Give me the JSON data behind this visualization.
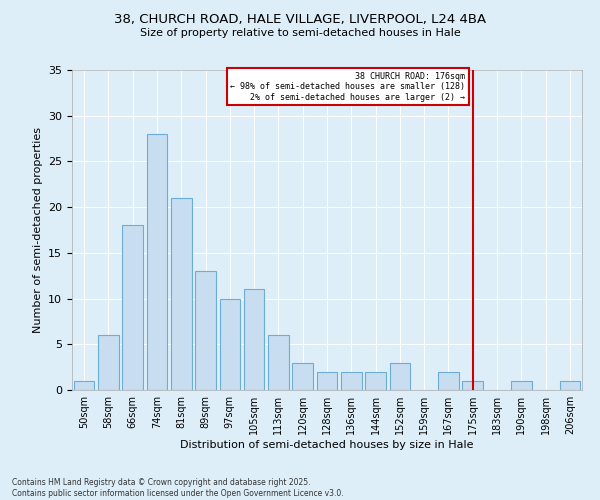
{
  "title": "38, CHURCH ROAD, HALE VILLAGE, LIVERPOOL, L24 4BA",
  "subtitle": "Size of property relative to semi-detached houses in Hale",
  "xlabel": "Distribution of semi-detached houses by size in Hale",
  "ylabel": "Number of semi-detached properties",
  "bar_labels": [
    "50sqm",
    "58sqm",
    "66sqm",
    "74sqm",
    "81sqm",
    "89sqm",
    "97sqm",
    "105sqm",
    "113sqm",
    "120sqm",
    "128sqm",
    "136sqm",
    "144sqm",
    "152sqm",
    "159sqm",
    "167sqm",
    "175sqm",
    "183sqm",
    "190sqm",
    "198sqm",
    "206sqm"
  ],
  "bar_values": [
    1,
    6,
    18,
    28,
    21,
    13,
    10,
    11,
    6,
    3,
    2,
    2,
    2,
    3,
    0,
    2,
    1,
    0,
    1,
    0,
    1
  ],
  "bar_color": "#c8ddf0",
  "bar_edge_color": "#6aaed6",
  "vline_x": 16,
  "vline_color": "#cc0000",
  "annotation_title": "38 CHURCH ROAD: 176sqm",
  "annotation_line1": "← 98% of semi-detached houses are smaller (128)",
  "annotation_line2": "2% of semi-detached houses are larger (2) →",
  "annotation_box_color": "#cc0000",
  "annotation_bg": "#ffffff",
  "footnote": "Contains HM Land Registry data © Crown copyright and database right 2025.\nContains public sector information licensed under the Open Government Licence v3.0.",
  "ylim": [
    0,
    35
  ],
  "yticks": [
    0,
    5,
    10,
    15,
    20,
    25,
    30,
    35
  ],
  "background_color": "#ddeef9",
  "grid_color": "#ffffff"
}
